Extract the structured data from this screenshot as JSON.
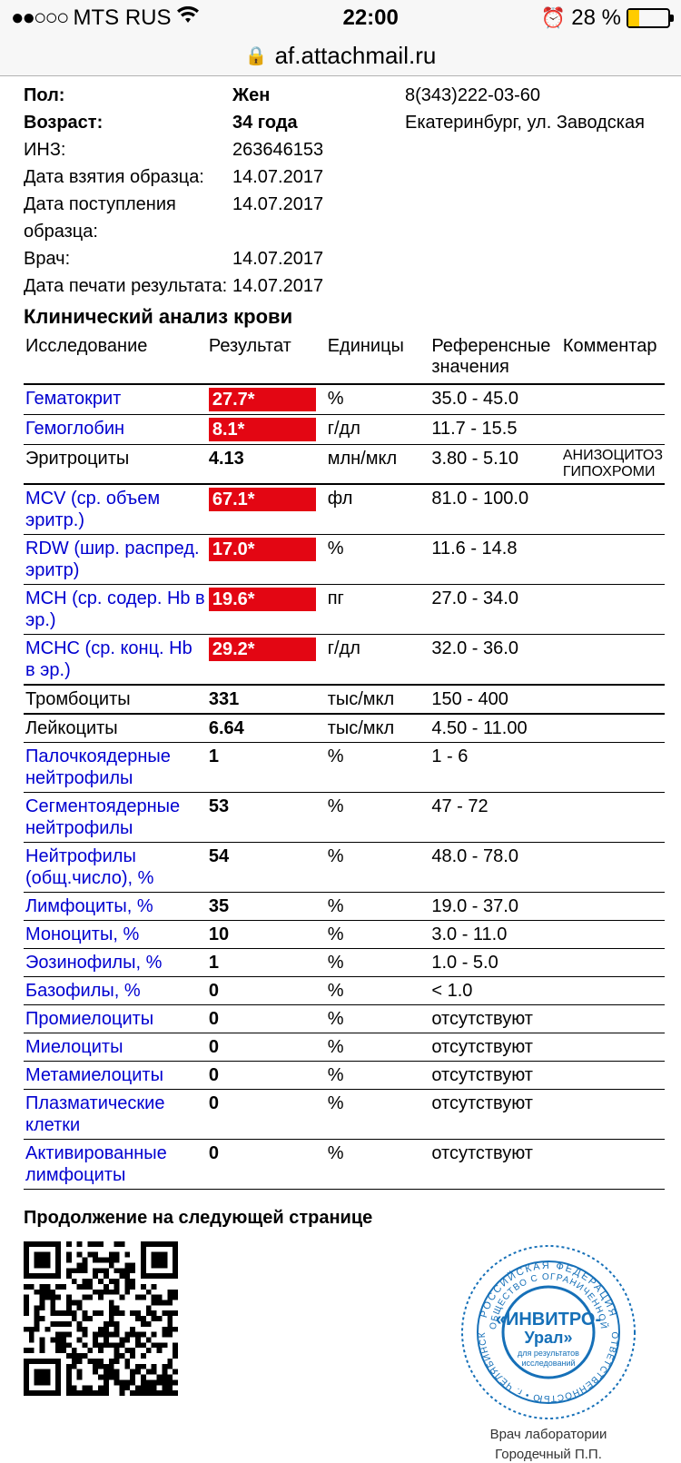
{
  "status": {
    "signal_dots": "●●○○○",
    "carrier": "MTS RUS",
    "time": "22:00",
    "battery_pct": "28 %",
    "battery_fill_pct": 28,
    "battery_fill_color": "#ffcc00"
  },
  "urlbar": {
    "host": "af.attachmail.ru"
  },
  "patient": {
    "rows": [
      {
        "label": "Пол:",
        "value": "Жен",
        "bold": true,
        "right": "8(343)222-03-60"
      },
      {
        "label": "Возраст:",
        "value": "34 года",
        "bold": true,
        "right": "Екатеринбург, ул. Заводская"
      },
      {
        "label": "ИНЗ:",
        "value": "263646153",
        "bold": false,
        "right": ""
      },
      {
        "label": "Дата взятия образца:",
        "value": "14.07.2017",
        "bold": false,
        "right": ""
      },
      {
        "label": "Дата поступления образца:",
        "value": "14.07.2017",
        "bold": false,
        "right": ""
      },
      {
        "label": "Врач:",
        "value": "14.07.2017",
        "bold": false,
        "right": ""
      },
      {
        "label": "Дата печати результата:",
        "value": "14.07.2017",
        "bold": false,
        "right": ""
      }
    ]
  },
  "section_title": "Клинический анализ крови",
  "table": {
    "headers": [
      "Исследование",
      "Результат",
      "Единицы",
      "Референсные значения",
      "Комментар"
    ],
    "flag_bg": "#e30613",
    "flag_fg": "#ffffff",
    "link_color": "#0000d0",
    "rows": [
      {
        "name": "Гематокрит",
        "blue": true,
        "result": "27.7*",
        "flag": true,
        "unit": "%",
        "ref": "35.0 - 45.0",
        "comment": "",
        "thick": false
      },
      {
        "name": "Гемоглобин",
        "blue": true,
        "result": "8.1*",
        "flag": true,
        "unit": "г/дл",
        "ref": "11.7 - 15.5",
        "comment": "",
        "thick": false
      },
      {
        "name": "Эритроциты",
        "blue": false,
        "result": "4.13",
        "flag": false,
        "unit": "млн/мкл",
        "ref": "3.80 - 5.10",
        "comment": "АНИЗОЦИТОЗ\nГИПОХРОМИ",
        "thick": true
      },
      {
        "name": "MCV (ср. объем эритр.)",
        "blue": true,
        "result": "67.1*",
        "flag": true,
        "unit": "фл",
        "ref": "81.0 - 100.0",
        "comment": "",
        "thick": false
      },
      {
        "name": "RDW (шир. распред. эритр)",
        "blue": true,
        "result": "17.0*",
        "flag": true,
        "unit": "%",
        "ref": "11.6 - 14.8",
        "comment": "",
        "thick": false
      },
      {
        "name": "MCH (ср. содер. Hb в эр.)",
        "blue": true,
        "result": "19.6*",
        "flag": true,
        "unit": "пг",
        "ref": "27.0 - 34.0",
        "comment": "",
        "thick": false
      },
      {
        "name": "MCHC (ср. конц. Hb в эр.)",
        "blue": true,
        "result": "29.2*",
        "flag": true,
        "unit": "г/дл",
        "ref": "32.0 - 36.0",
        "comment": "",
        "thick": true
      },
      {
        "name": "Тромбоциты",
        "blue": false,
        "result": "331",
        "flag": false,
        "unit": "тыс/мкл",
        "ref": "150 - 400",
        "comment": "",
        "thick": true
      },
      {
        "name": "Лейкоциты",
        "blue": false,
        "result": "6.64",
        "flag": false,
        "unit": "тыс/мкл",
        "ref": "4.50 - 11.00",
        "comment": "",
        "thick": false
      },
      {
        "name": "Палочкоядерные нейтрофилы",
        "blue": true,
        "result": "1",
        "flag": false,
        "unit": "%",
        "ref": "1 - 6",
        "comment": "",
        "thick": false
      },
      {
        "name": "Сегментоядерные нейтрофилы",
        "blue": true,
        "result": "53",
        "flag": false,
        "unit": "%",
        "ref": "47 - 72",
        "comment": "",
        "thick": false
      },
      {
        "name": "Нейтрофилы (общ.число), %",
        "blue": true,
        "result": "54",
        "flag": false,
        "unit": "%",
        "ref": "48.0 - 78.0",
        "comment": "",
        "thick": false
      },
      {
        "name": "Лимфоциты, %",
        "blue": true,
        "result": "35",
        "flag": false,
        "unit": "%",
        "ref": "19.0 - 37.0",
        "comment": "",
        "thick": false
      },
      {
        "name": "Моноциты, %",
        "blue": true,
        "result": "10",
        "flag": false,
        "unit": "%",
        "ref": "3.0 - 11.0",
        "comment": "",
        "thick": false
      },
      {
        "name": "Эозинофилы, %",
        "blue": true,
        "result": "1",
        "flag": false,
        "unit": "%",
        "ref": "1.0 - 5.0",
        "comment": "",
        "thick": false
      },
      {
        "name": "Базофилы, %",
        "blue": true,
        "result": "0",
        "flag": false,
        "unit": "%",
        "ref": "< 1.0",
        "comment": "",
        "thick": false
      },
      {
        "name": "Промиелоциты",
        "blue": true,
        "result": "0",
        "flag": false,
        "unit": "%",
        "ref": "отсутствуют",
        "comment": "",
        "thick": false
      },
      {
        "name": "Миелоциты",
        "blue": true,
        "result": "0",
        "flag": false,
        "unit": "%",
        "ref": "отсутствуют",
        "comment": "",
        "thick": false
      },
      {
        "name": "Метамиелоциты",
        "blue": true,
        "result": "0",
        "flag": false,
        "unit": "%",
        "ref": "отсутствуют",
        "comment": "",
        "thick": false
      },
      {
        "name": "Плазматические клетки",
        "blue": true,
        "result": "0",
        "flag": false,
        "unit": "%",
        "ref": "отсутствуют",
        "comment": "",
        "thick": false
      },
      {
        "name": "Активированные лимфоциты",
        "blue": true,
        "result": "0",
        "flag": false,
        "unit": "%",
        "ref": "отсутствуют",
        "comment": "",
        "thick": false
      }
    ]
  },
  "footer": {
    "continuation": "Продолжение на следующей странице",
    "stamp_org_top": "«ИНВИТРО-",
    "stamp_org_bot": "Урал»",
    "stamp_sub1": "для результатов",
    "stamp_sub2": "исследований",
    "stamp_ring_outer": "РОССИЙСКАЯ ФЕДЕРАЦИЯ",
    "stamp_ring_mid": "ОБЩЕСТВО С ОГРАНИЧЕННОЙ",
    "stamp_ring_bot": "ОТВЕТСТВЕННОСТЬЮ • г. ЧЕЛЯБИНСК",
    "stamp_color": "#1670b8",
    "signatory_l1": "Врач лаборатории",
    "signatory_l2": "Городечный П.П."
  }
}
